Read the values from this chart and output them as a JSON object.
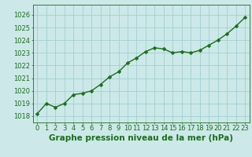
{
  "x": [
    0,
    1,
    2,
    3,
    4,
    5,
    6,
    7,
    8,
    9,
    10,
    11,
    12,
    13,
    14,
    15,
    16,
    17,
    18,
    19,
    20,
    21,
    22,
    23
  ],
  "y": [
    1018.2,
    1019.0,
    1018.7,
    1019.0,
    1019.7,
    1019.8,
    1020.0,
    1020.5,
    1021.1,
    1021.5,
    1022.2,
    1022.6,
    1023.1,
    1023.4,
    1023.3,
    1023.0,
    1023.1,
    1023.0,
    1023.2,
    1023.6,
    1024.0,
    1024.5,
    1025.1,
    1025.8
  ],
  "line_color": "#1a6e1a",
  "marker_color": "#1a6e1a",
  "bg_color": "#cce8e8",
  "grid_color": "#99cccc",
  "axis_color": "#1a6e1a",
  "title": "Graphe pression niveau de la mer (hPa)",
  "title_color": "#1a6e1a",
  "ylim_min": 1017.5,
  "ylim_max": 1026.8,
  "yticks": [
    1018,
    1019,
    1020,
    1021,
    1022,
    1023,
    1024,
    1025,
    1026
  ],
  "xticks": [
    0,
    1,
    2,
    3,
    4,
    5,
    6,
    7,
    8,
    9,
    10,
    11,
    12,
    13,
    14,
    15,
    16,
    17,
    18,
    19,
    20,
    21,
    22,
    23
  ],
  "title_fontsize": 7.5,
  "tick_fontsize": 6.0,
  "line_width": 1.0,
  "marker_size": 2.5
}
